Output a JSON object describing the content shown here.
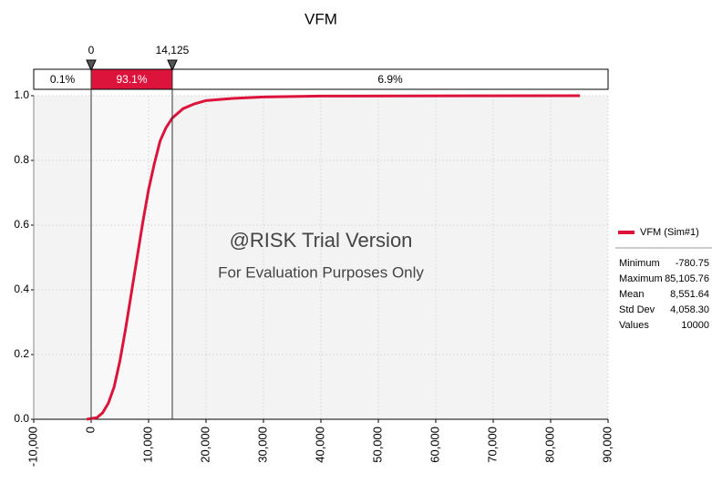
{
  "chart_data": {
    "type": "line",
    "title": "VFM",
    "x": [
      -780.75,
      1000,
      2000,
      3000,
      4000,
      5000,
      6000,
      7000,
      8000,
      9000,
      10000,
      11000,
      12000,
      13000,
      14125,
      16000,
      18000,
      20000,
      25000,
      30000,
      40000,
      85105.76
    ],
    "series": [
      {
        "name": "VFM (Sim#1)",
        "color": "#dc143c",
        "values": [
          0,
          0.005,
          0.02,
          0.05,
          0.1,
          0.18,
          0.28,
          0.39,
          0.5,
          0.61,
          0.71,
          0.79,
          0.86,
          0.9,
          0.931,
          0.96,
          0.975,
          0.985,
          0.992,
          0.996,
          0.999,
          1.0
        ]
      }
    ],
    "xlim": [
      -10000,
      90000
    ],
    "xticks": [
      {
        "value": -10000,
        "label": "-10,000"
      },
      0,
      {
        "value": 10000,
        "label": "10,000"
      },
      {
        "value": 20000,
        "label": "20,000"
      },
      {
        "value": 30000,
        "label": "30,000"
      },
      {
        "value": 40000,
        "label": "40,000"
      },
      {
        "value": 50000,
        "label": "50,000"
      },
      {
        "value": 60000,
        "label": "60,000"
      },
      {
        "value": 70000,
        "label": "70,000"
      },
      {
        "value": 80000,
        "label": "80,000"
      },
      {
        "value": 90000,
        "label": "90,000"
      }
    ],
    "ylim": [
      0,
      1
    ],
    "yticks": [
      {
        "value": 0,
        "label": "0.0"
      },
      0.2,
      0.4,
      0.6,
      0.8,
      {
        "value": 1,
        "label": "1.0"
      }
    ],
    "grid": true,
    "delimiters": [
      {
        "value": 0,
        "label": "0"
      },
      {
        "value": 14125,
        "label": "14,125"
      }
    ],
    "delimiter_percentages": [
      "0.1%",
      "93.1%",
      "6.9%"
    ],
    "watermark": [
      "@RISK Trial Version",
      "For Evaluation Purposes Only"
    ],
    "statistics": [
      {
        "label": "Minimum",
        "value": "-780.75"
      },
      {
        "label": "Maximum",
        "value": "85,105.76"
      },
      {
        "label": "Mean",
        "value": "8,551.64"
      },
      {
        "label": "Std Dev",
        "value": "4,058.30"
      },
      {
        "label": "Values",
        "value": "10000"
      }
    ]
  }
}
